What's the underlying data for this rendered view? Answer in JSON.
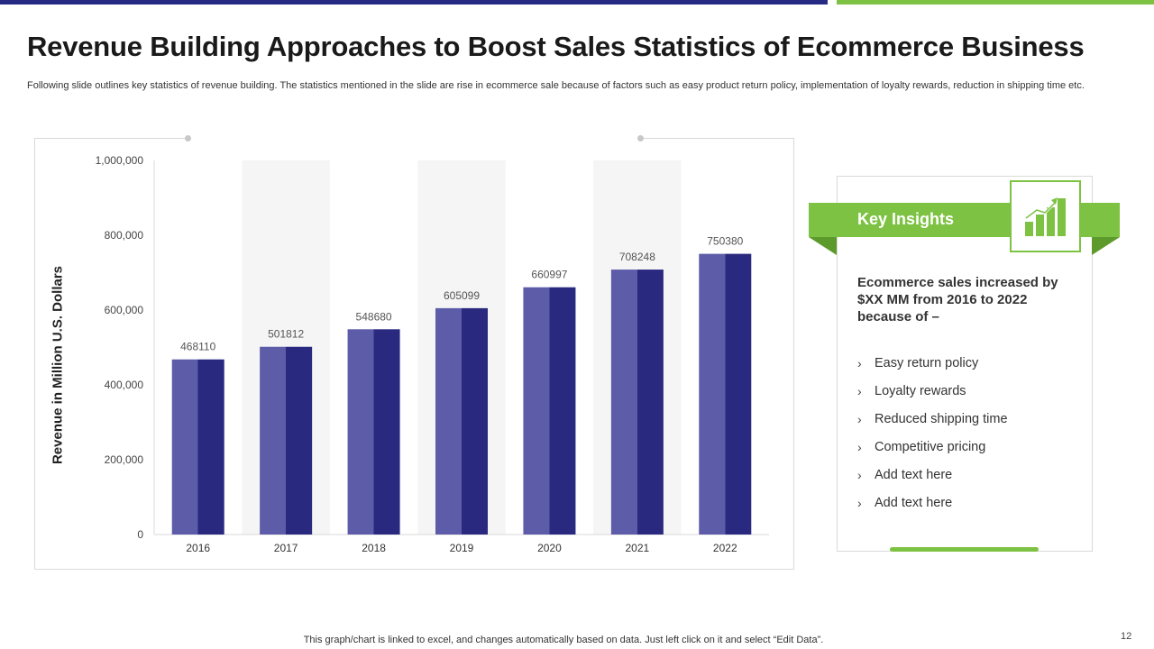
{
  "slide": {
    "title": "Revenue Building Approaches to Boost Sales Statistics of Ecommerce Business",
    "subtitle": "Following slide outlines key statistics of revenue building. The statistics mentioned in the slide are rise in ecommerce sale because of factors such as easy product return policy, implementation of loyalty rewards, reduction in shipping time etc.",
    "footer_note": "This graph/chart is linked to excel, and changes automatically based on data. Just left click on it and select “Edit Data”.",
    "page_number": "12"
  },
  "colors": {
    "navy": "#262a82",
    "green": "#7dc242",
    "bar_light": "#5c5ca8",
    "bar_dark": "#29297f",
    "band": "#f5f5f5"
  },
  "chart_data": {
    "type": "bar",
    "title": "",
    "xlabel": "",
    "ylabel": "Revenue in Million U.S. Dollars",
    "categories": [
      "2016",
      "2017",
      "2018",
      "2019",
      "2020",
      "2021",
      "2022"
    ],
    "values": [
      468110,
      501812,
      548680,
      605099,
      660997,
      708248,
      750380
    ],
    "data_labels": [
      "468110",
      "501812",
      "548680",
      "605099",
      "660997",
      "708248",
      "750380"
    ],
    "ylim": [
      0,
      1000000
    ],
    "yticks": [
      0,
      200000,
      400000,
      600000,
      800000,
      1000000
    ],
    "ytick_labels": [
      "0",
      "200,000",
      "400,000",
      "600,000",
      "800,000",
      "1,000,000"
    ],
    "grid": false
  },
  "insights": {
    "title": "Key Insights",
    "heading": "Ecommerce sales increased by $XX MM from 2016 to 2022 because of –",
    "chevron": "›",
    "items": [
      "Easy return policy",
      "Loyalty rewards",
      "Reduced shipping time",
      "Competitive pricing",
      "Add text here",
      "Add text here"
    ],
    "icon": "bar-chart-growth-icon"
  }
}
